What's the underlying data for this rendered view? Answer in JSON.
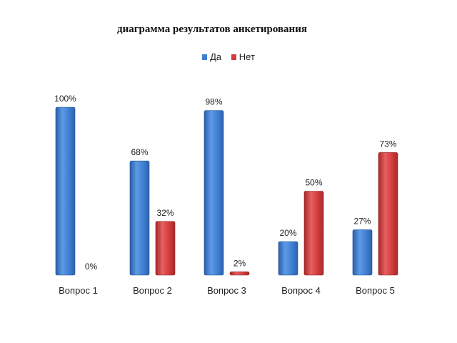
{
  "chart_data": {
    "type": "bar",
    "title": "диаграмма результатов анкетирования",
    "categories": [
      "Вопрос 1",
      "Вопрос 2",
      "Вопрос 3",
      "Вопрос 4",
      "Вопрос 5"
    ],
    "series": [
      {
        "name": "Да",
        "values": [
          100,
          68,
          98,
          20,
          27
        ],
        "labels": [
          "100%",
          "68%",
          "98%",
          "20%",
          "27%"
        ],
        "color": "#3f7fd0"
      },
      {
        "name": "Нет",
        "values": [
          0,
          32,
          2,
          50,
          73
        ],
        "labels": [
          "0%",
          "32%",
          "2%",
          "50%",
          "73%"
        ],
        "color": "#d23c3c"
      }
    ],
    "ylim": [
      0,
      100
    ],
    "grid": false,
    "legend": "top"
  }
}
